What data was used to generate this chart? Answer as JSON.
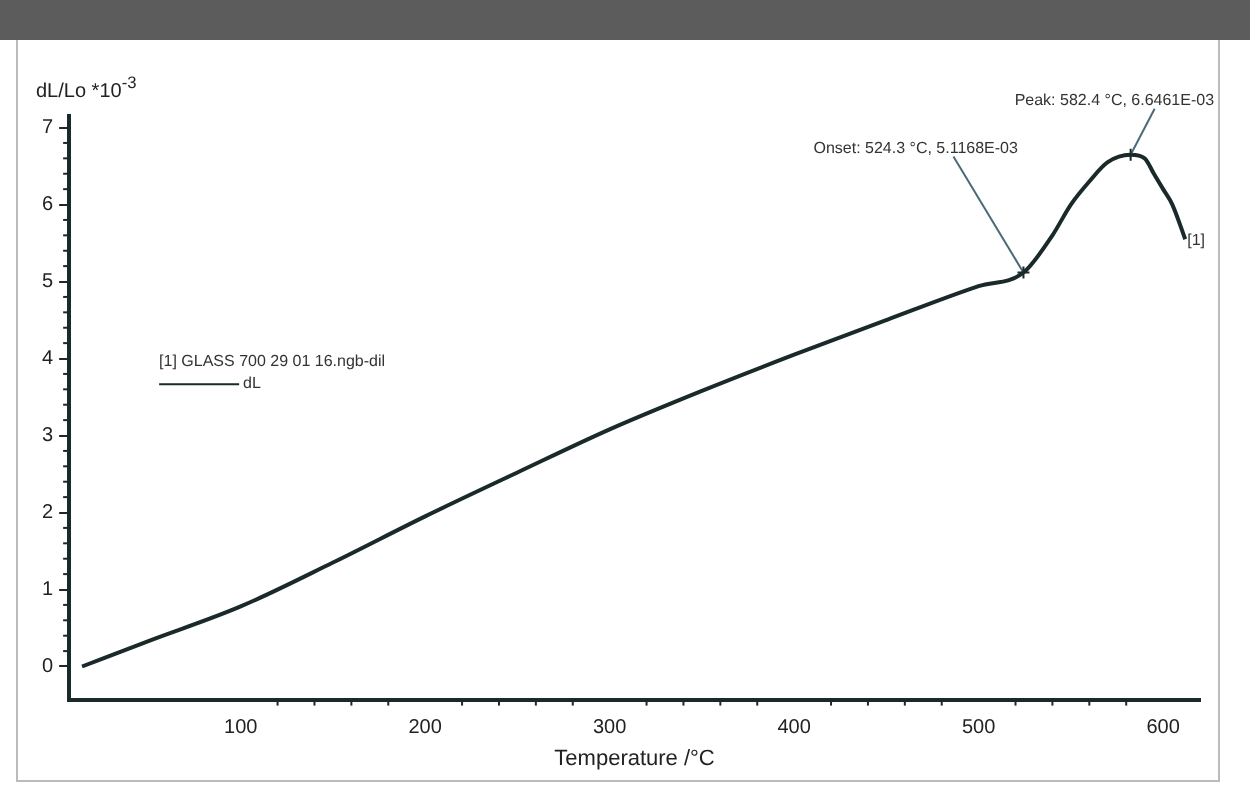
{
  "chart_data": {
    "type": "line",
    "xlabel": "Temperature /°C",
    "ylabel": "dL/Lo *10$^{-3}$",
    "legend_title": "[1] GLASS 700 29 01 16.ngb-dil",
    "legend": "left",
    "xlim": [
      7,
      620
    ],
    "ylim": [
      -0.43,
      7.15
    ],
    "xticks": [
      100,
      200,
      300,
      400,
      500,
      600
    ],
    "yticks": [
      0,
      1,
      2,
      3,
      4,
      5,
      6,
      7
    ],
    "grid": false,
    "series": [
      {
        "name": "dL",
        "color": "#1a2a2a",
        "x": [
          14,
          50,
          100,
          150,
          200,
          250,
          300,
          350,
          400,
          450,
          500,
          524.3,
          540,
          550,
          560,
          570,
          582.4,
          590,
          595,
          600,
          605,
          612
        ],
        "values": [
          0,
          0.33,
          0.78,
          1.35,
          1.95,
          2.52,
          3.08,
          3.58,
          4.05,
          4.5,
          4.94,
          5.1168,
          5.6,
          6.0,
          6.3,
          6.55,
          6.6461,
          6.6,
          6.4,
          6.2,
          6.0,
          5.55
        ]
      }
    ],
    "annotations": [
      {
        "text": "Onset: 524.3 °C, 5.1168E-03",
        "x": 524.3,
        "y": 5.1168
      },
      {
        "text": "Peak: 582.4 °C, 6.6461E-03",
        "x": 582.4,
        "y": 6.6461
      },
      {
        "text": "[1]",
        "x": 612,
        "y": 5.55
      }
    ]
  }
}
